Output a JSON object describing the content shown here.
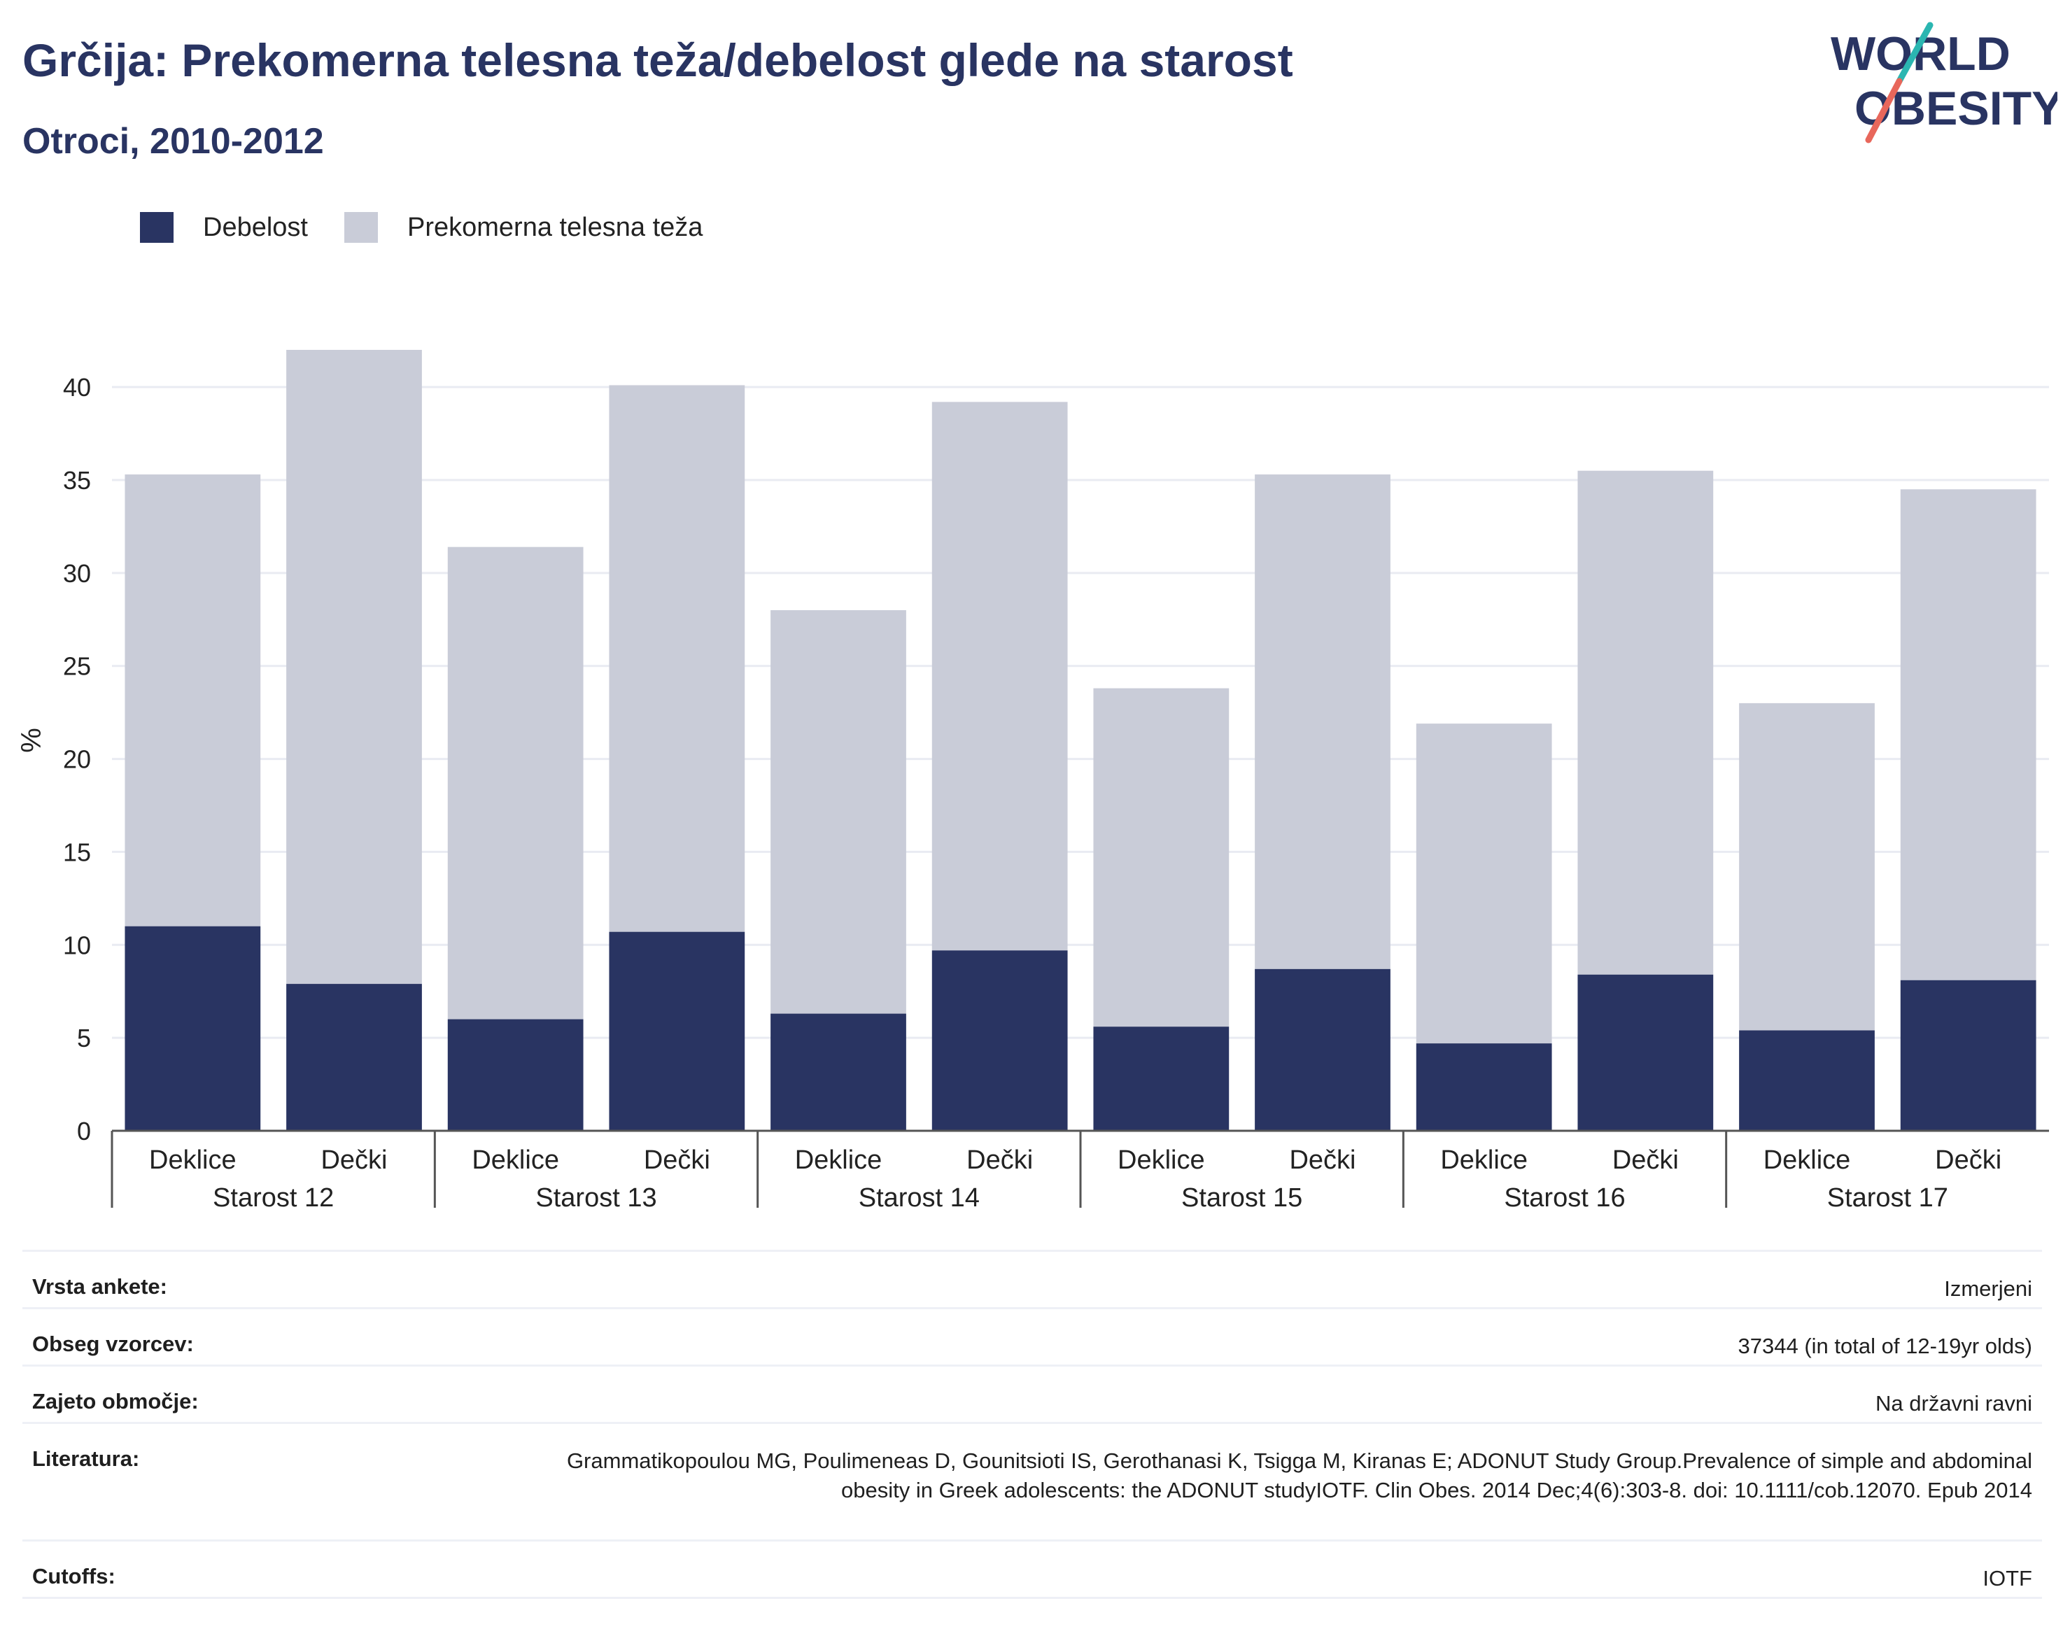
{
  "header": {
    "title": "Grčija: Prekomerna telesna teža/debelost glede na starost",
    "subtitle": "Otroci, 2010-2012"
  },
  "logo": {
    "line1": "WORLD",
    "line2": "OBESITY"
  },
  "colors": {
    "obesity": "#293462",
    "overweight": "#c9ccd8",
    "title": "#293462",
    "logo_teal": "#2bb6b1",
    "logo_coral": "#e8675b"
  },
  "legend": [
    {
      "label": "Debelost",
      "color": "#293462"
    },
    {
      "label": "Prekomerna telesna teža",
      "color": "#c9ccd8"
    }
  ],
  "chart_data": {
    "type": "bar",
    "stacked": true,
    "ylabel": "%",
    "ylim": [
      0,
      42
    ],
    "yticks": [
      0,
      5,
      10,
      15,
      20,
      25,
      30,
      35,
      40
    ],
    "grid": true,
    "legend_position": "top-left",
    "groups": [
      "Starost 12",
      "Starost 13",
      "Starost 14",
      "Starost 15",
      "Starost 16",
      "Starost 17"
    ],
    "categories": [
      "Deklice",
      "Dečki",
      "Deklice",
      "Dečki",
      "Deklice",
      "Dečki",
      "Deklice",
      "Dečki",
      "Deklice",
      "Dečki",
      "Deklice",
      "Dečki"
    ],
    "series": [
      {
        "name": "Debelost",
        "values": [
          11.0,
          7.9,
          6.0,
          10.7,
          6.3,
          9.7,
          5.6,
          8.7,
          4.7,
          8.4,
          5.4,
          8.1
        ]
      },
      {
        "name": "Prekomerna telesna teža",
        "values": [
          24.3,
          34.1,
          25.4,
          29.4,
          21.7,
          29.5,
          18.2,
          26.6,
          17.2,
          27.1,
          17.6,
          26.4
        ]
      }
    ]
  },
  "info": [
    {
      "key": "Vrsta ankete:",
      "value": "Izmerjeni"
    },
    {
      "key": "Obseg vzorcev:",
      "value": "37344 (in total of 12-19yr olds)"
    },
    {
      "key": "Zajeto območje:",
      "value": "Na državni ravni"
    },
    {
      "key": "Literatura:",
      "value": "Grammatikopoulou MG, Poulimeneas D, Gounitsioti IS, Gerothanasi K, Tsigga M, Kiranas E; ADONUT Study Group.Prevalence of simple and abdominal obesity in Greek adolescents: the ADONUT studyIOTF. Clin Obes. 2014 Dec;4(6):303-8. doi: 10.1111/cob.12070. Epub 2014"
    },
    {
      "key": "Cutoffs:",
      "value": "IOTF"
    }
  ]
}
